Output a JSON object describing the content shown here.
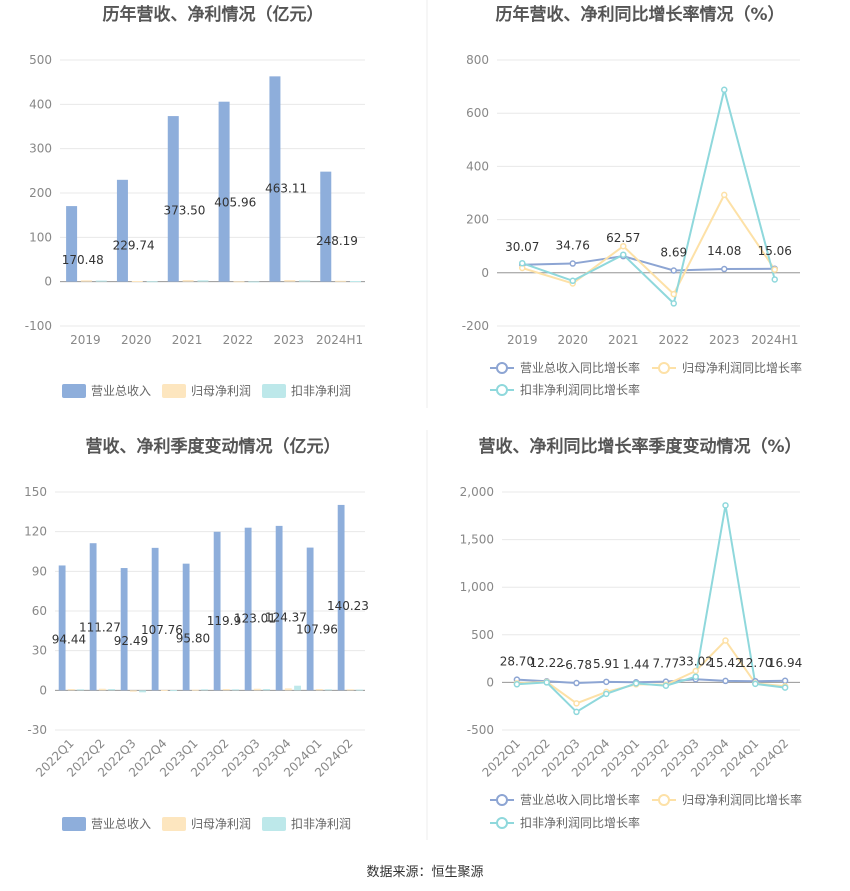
{
  "source": "数据来源：恒生聚源",
  "colors": {
    "revenue": "#8eaedb",
    "parent_net": "#fde6bf",
    "deducted_net": "#bde8ea",
    "rev_growth": "#8da5d3",
    "parent_growth": "#fde1a7",
    "deducted_growth": "#8fd8dc",
    "title": "#555555",
    "axis_text": "#888888",
    "grid": "#e8e8e8"
  },
  "chart_data": [
    {
      "type": "bar",
      "title": "历年营收、净利情况（亿元）",
      "categories": [
        "2019",
        "2020",
        "2021",
        "2022",
        "2023",
        "2024H1"
      ],
      "y_ticks": [
        "500",
        "400",
        "300",
        "200",
        "100",
        "0",
        "-100"
      ],
      "ylim": [
        -100,
        500
      ],
      "legend_position": "bottom",
      "series": [
        {
          "name": "营业总收入",
          "values": [
            170.48,
            229.74,
            373.5,
            405.96,
            463.11,
            248.19
          ],
          "labels": [
            "170.48",
            "229.74",
            "373.50",
            "405.96",
            "463.11",
            "248.19"
          ]
        },
        {
          "name": "归母净利润",
          "values": [
            3.0,
            1.5,
            3.5,
            0.8,
            3.5,
            2.0
          ]
        },
        {
          "name": "扣非净利润",
          "values": [
            2.5,
            1.0,
            3.0,
            0.5,
            3.0,
            1.5
          ]
        }
      ]
    },
    {
      "type": "line",
      "title": "历年营收、净利同比增长率情况（%）",
      "categories": [
        "2019",
        "2020",
        "2021",
        "2022",
        "2023",
        "2024H1"
      ],
      "y_ticks": [
        "800",
        "600",
        "400",
        "200",
        "0",
        "-200"
      ],
      "ylim": [
        -200,
        800
      ],
      "legend_position": "bottom",
      "series": [
        {
          "name": "营业总收入同比增长率",
          "values": [
            30.07,
            34.76,
            62.57,
            8.69,
            14.08,
            15.06
          ],
          "labels": [
            "30.07",
            "34.76",
            "62.57",
            "8.69",
            "14.08",
            "15.06"
          ]
        },
        {
          "name": "归母净利润同比增长率",
          "values": [
            18,
            -40,
            100,
            -80,
            293,
            12
          ]
        },
        {
          "name": "扣非净利润同比增长率",
          "values": [
            36,
            -30,
            68,
            -115,
            688,
            -25
          ]
        }
      ]
    },
    {
      "type": "bar",
      "title": "营收、净利季度变动情况（亿元）",
      "categories": [
        "2022Q1",
        "2022Q2",
        "2022Q3",
        "2022Q4",
        "2023Q1",
        "2023Q2",
        "2023Q3",
        "2023Q4",
        "2024Q1",
        "2024Q2"
      ],
      "y_ticks": [
        "150",
        "120",
        "90",
        "60",
        "30",
        "0",
        "-30"
      ],
      "ylim": [
        -30,
        150
      ],
      "legend_position": "bottom",
      "series": [
        {
          "name": "营业总收入",
          "values": [
            94.44,
            111.27,
            92.49,
            107.76,
            95.8,
            119.9,
            123.01,
            124.37,
            107.96,
            140.23
          ],
          "labels": [
            "94.44",
            "111.27",
            "92.49",
            "107.76",
            "95.80",
            "119.9",
            "123.01",
            "124.37",
            "107.96",
            "140.23"
          ]
        },
        {
          "name": "归母净利润",
          "values": [
            1.0,
            1.2,
            -1.0,
            0.3,
            0.5,
            1.0,
            1.2,
            1.5,
            1.0,
            0.8
          ]
        },
        {
          "name": "扣非净利润",
          "values": [
            0.8,
            1.0,
            -1.5,
            0.2,
            0.8,
            0.8,
            1.0,
            3.5,
            0.8,
            0.6
          ]
        }
      ]
    },
    {
      "type": "line",
      "title": "营收、净利同比增长率季度变动情况（%）",
      "categories": [
        "2022Q1",
        "2022Q2",
        "2022Q3",
        "2022Q4",
        "2023Q1",
        "2023Q2",
        "2023Q3",
        "2023Q4",
        "2024Q1",
        "2024Q2"
      ],
      "y_ticks": [
        "2,000",
        "1,500",
        "1,000",
        "500",
        "0",
        "-500"
      ],
      "ylim": [
        -500,
        2000
      ],
      "legend_position": "bottom",
      "series": [
        {
          "name": "营业总收入同比增长率",
          "values": [
            28.7,
            12.22,
            -6.78,
            5.91,
            1.44,
            7.77,
            33.02,
            15.42,
            12.7,
            16.94
          ],
          "labels": [
            "28.70",
            "12.22",
            "-6.78",
            "5.91",
            "1.44",
            "7.77",
            "33.02",
            "15.42",
            "12.70",
            "16.94"
          ]
        },
        {
          "name": "归母净利润同比增长率",
          "values": [
            -10,
            5,
            -220,
            -100,
            -20,
            -25,
            120,
            440,
            -10,
            -40
          ]
        },
        {
          "name": "扣非净利润同比增长率",
          "values": [
            -20,
            0,
            -310,
            -120,
            -10,
            -35,
            60,
            1860,
            -15,
            -55
          ]
        }
      ]
    }
  ]
}
